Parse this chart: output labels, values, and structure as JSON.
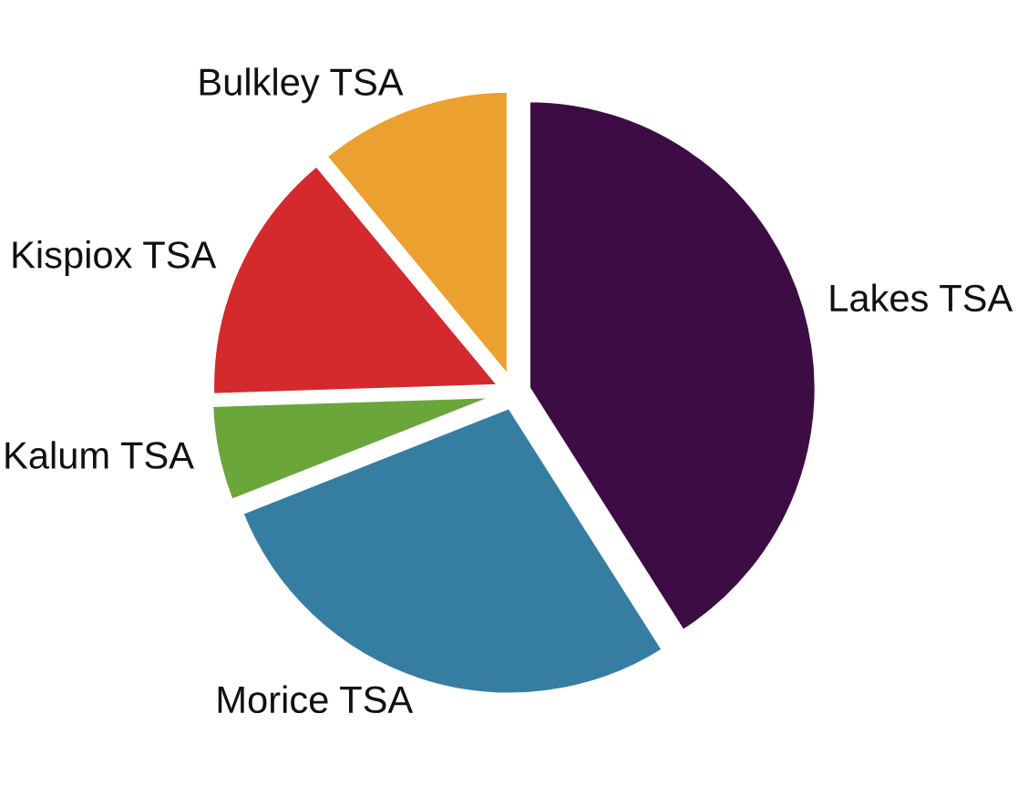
{
  "chart_data": {
    "type": "pie",
    "categories": [
      "Lakes TSA",
      "Morice TSA",
      "Kalum TSA",
      "Kispiox TSA",
      "Bulkley TSA"
    ],
    "values": [
      41,
      28,
      5.5,
      14.5,
      11
    ],
    "colors": [
      "#3d0c45",
      "#357ea1",
      "#6aa63a",
      "#d42a2e",
      "#eba02f"
    ]
  }
}
